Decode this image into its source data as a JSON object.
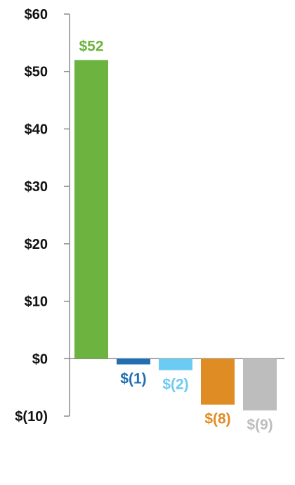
{
  "chart_data": {
    "type": "bar",
    "title": "",
    "xlabel": "",
    "ylabel": "",
    "ylim": [
      -10,
      60
    ],
    "yticks": [
      60,
      50,
      40,
      30,
      20,
      10,
      0,
      -10
    ],
    "ytick_labels": [
      "$60",
      "$50",
      "$40",
      "$30",
      "$20",
      "$10",
      "$0",
      "$(10)"
    ],
    "grid": false,
    "legend": "none",
    "categories": [],
    "bars": [
      {
        "value": 52,
        "label": "$52",
        "color": "#6cb33f"
      },
      {
        "value": -1,
        "label": "$(1)",
        "color": "#1f6fb2"
      },
      {
        "value": -2,
        "label": "$(2)",
        "color": "#6ccbf2"
      },
      {
        "value": -8,
        "label": "$(8)",
        "color": "#e08c25"
      },
      {
        "value": -9,
        "label": "$(9)",
        "color": "#bdbdbd"
      }
    ]
  }
}
